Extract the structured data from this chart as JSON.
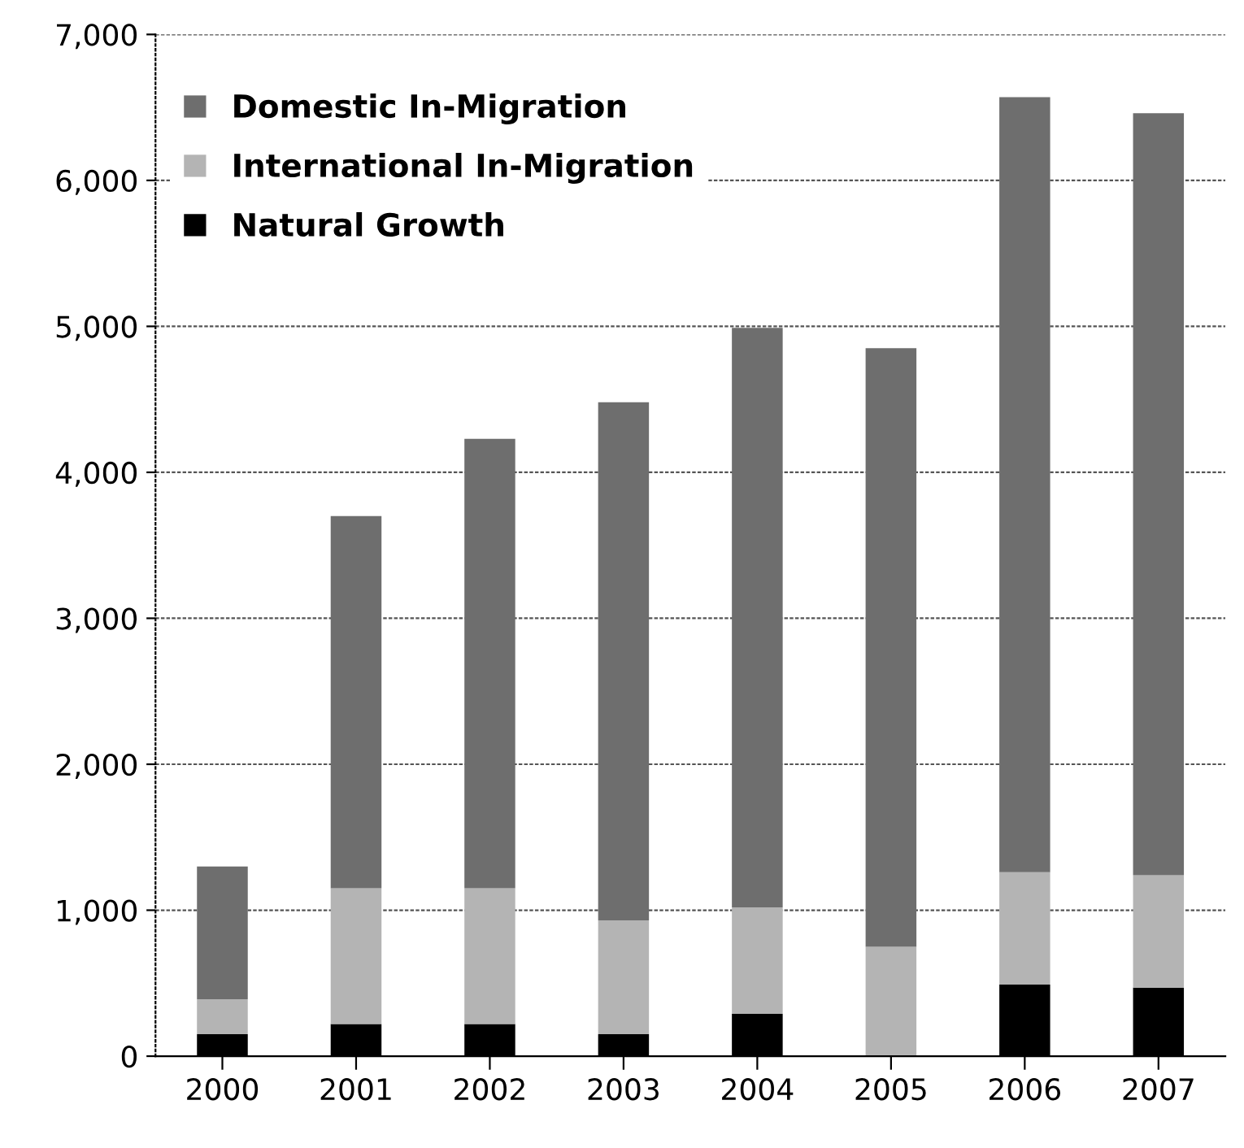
{
  "chart_data": {
    "type": "bar",
    "stacked": true,
    "categories": [
      "2000",
      "2001",
      "2002",
      "2003",
      "2004",
      "2005",
      "2006",
      "2007"
    ],
    "series": [
      {
        "name": "Natural Growth",
        "color": "#000000",
        "values": [
          150,
          220,
          220,
          150,
          290,
          null,
          490,
          470
        ]
      },
      {
        "name": "International In-Migration",
        "color": "#b4b4b4",
        "values": [
          240,
          930,
          930,
          780,
          730,
          750,
          770,
          770
        ]
      },
      {
        "name": "Domestic In-Migration",
        "color": "#6e6e6e",
        "values": [
          910,
          2550,
          3080,
          3550,
          3970,
          4100,
          5310,
          5220
        ]
      }
    ],
    "ylim": [
      0,
      7000
    ],
    "yticks": [
      {
        "value": 0,
        "label": "0"
      },
      {
        "value": 1000,
        "label": "1,000"
      },
      {
        "value": 2000,
        "label": "2,000"
      },
      {
        "value": 3000,
        "label": "3,000"
      },
      {
        "value": 4000,
        "label": "4,000"
      },
      {
        "value": 5000,
        "label": "5,000"
      },
      {
        "value": 6000,
        "label": "6,000"
      },
      {
        "value": 7000,
        "label": "7,000"
      }
    ],
    "grid": "y",
    "legend": "top left"
  }
}
